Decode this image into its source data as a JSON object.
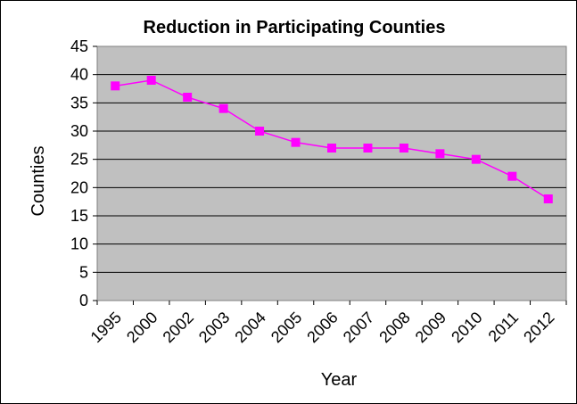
{
  "chart_data": {
    "type": "line",
    "title": "Reduction in Participating Counties",
    "xlabel": "Year",
    "ylabel": "Counties",
    "categories": [
      "1995",
      "2000",
      "2002",
      "2003",
      "2004",
      "2005",
      "2006",
      "2007",
      "2008",
      "2009",
      "2010",
      "2011",
      "2012"
    ],
    "series": [
      {
        "values": [
          38,
          39,
          36,
          34,
          30,
          28,
          27,
          27,
          27,
          26,
          25,
          22,
          18
        ]
      }
    ],
    "ylim": [
      0,
      45
    ],
    "ytick_step": 5,
    "grid": true,
    "legend": "none",
    "colors": {
      "plot_background": "#C0C0C0",
      "series_line": "#FF00FF",
      "gridline": "#000000"
    },
    "marker": "square"
  }
}
